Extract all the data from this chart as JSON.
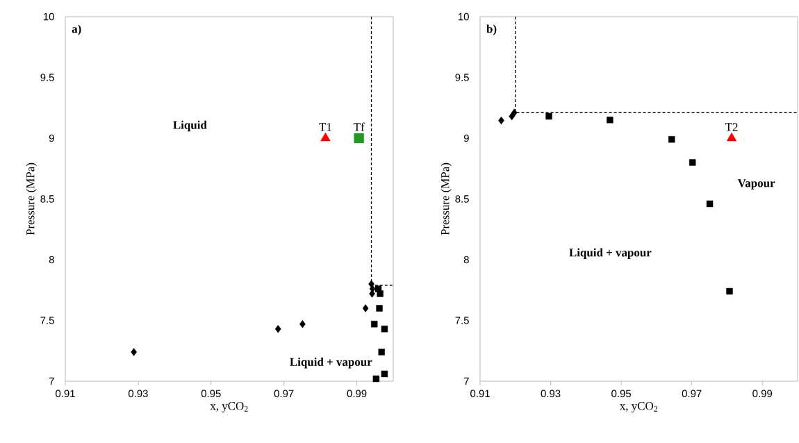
{
  "chart_data": [
    {
      "type": "scatter",
      "title": "a)",
      "xlabel": "x, yCO$_{2}$",
      "ylabel": "Pressure (MPa)",
      "xlim": [
        0.91,
        1.0
      ],
      "ylim": [
        7,
        10
      ],
      "xticks": [
        0.91,
        0.93,
        0.95,
        0.97,
        0.99
      ],
      "yticks": [
        7,
        7.5,
        8,
        8.5,
        9,
        9.5,
        10
      ],
      "annotations": [
        "Liquid",
        "Liquid + vapour"
      ],
      "series": [
        {
          "marker": "diamond",
          "color": "#000000",
          "x": [
            0.9288,
            0.9684,
            0.9751,
            0.9924,
            0.9942,
            0.9943,
            0.994
          ],
          "values": [
            7.24,
            7.43,
            7.47,
            7.6,
            7.72,
            7.76,
            7.8
          ]
        },
        {
          "marker": "square",
          "color": "#000000",
          "x": [
            0.9959,
            0.9964,
            0.9962,
            0.9948,
            0.9976,
            0.9968,
            0.9976,
            0.9953
          ],
          "values": [
            7.76,
            7.72,
            7.6,
            7.47,
            7.43,
            7.24,
            7.06,
            7.02
          ]
        },
        {
          "type": "line",
          "line_style": "dashed",
          "color": "#000000",
          "x": [
            0.994,
            0.994,
            1.0
          ],
          "values": [
            10,
            7.79,
            7.79
          ]
        },
        {
          "marker": "triangle",
          "name": "T1",
          "color": "#ff0000",
          "x": [
            0.9814
          ],
          "values": [
            9.0
          ]
        },
        {
          "marker": "square",
          "name": "Tf",
          "color": "#229922",
          "x": [
            0.9906
          ],
          "values": [
            9.0
          ]
        }
      ]
    },
    {
      "type": "scatter",
      "title": "b)",
      "xlabel": "x, yCO$_{2}$",
      "ylabel": "Pressure (MPa)",
      "xlim": [
        0.91,
        1.0
      ],
      "ylim": [
        7,
        10
      ],
      "xticks": [
        0.91,
        0.93,
        0.95,
        0.97,
        0.99
      ],
      "yticks": [
        7,
        7.5,
        8,
        8.5,
        9,
        9.5,
        10
      ],
      "annotations": [
        "Liquid + vapour",
        "Vapour"
      ],
      "series": [
        {
          "marker": "diamond",
          "color": "#000000",
          "x": [
            0.916,
            0.919,
            0.9197
          ],
          "values": [
            9.145,
            9.18,
            9.21
          ]
        },
        {
          "marker": "square",
          "color": "#000000",
          "x": [
            0.9295,
            0.9468,
            0.9643,
            0.9702,
            0.9751,
            0.9807
          ],
          "values": [
            9.18,
            9.15,
            8.99,
            8.8,
            8.46,
            7.74
          ]
        },
        {
          "type": "line",
          "line_style": "dashed",
          "color": "#000000",
          "x": [
            0.92,
            0.92,
            1.0
          ],
          "values": [
            10,
            9.21,
            9.21
          ]
        },
        {
          "marker": "triangle",
          "name": "T2",
          "color": "#ff0000",
          "x": [
            0.9813
          ],
          "values": [
            9.0
          ]
        }
      ]
    }
  ]
}
